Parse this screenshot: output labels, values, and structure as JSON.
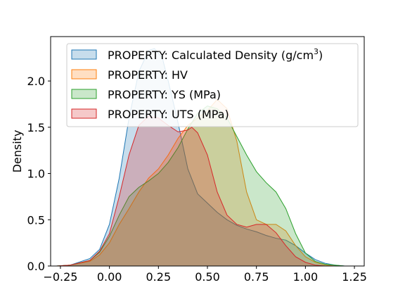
{
  "chart_data": {
    "type": "area",
    "xlabel": "",
    "ylabel": "Density",
    "xlim": [
      -0.3,
      1.3
    ],
    "ylim": [
      0.0,
      2.48
    ],
    "xticks": [
      "−0.25",
      "0.00",
      "0.25",
      "0.50",
      "0.75",
      "1.00",
      "1.25"
    ],
    "xtick_values": [
      -0.25,
      0.0,
      0.25,
      0.5,
      0.75,
      1.0,
      1.25
    ],
    "yticks": [
      "0.0",
      "0.5",
      "1.0",
      "1.5",
      "2.0"
    ],
    "ytick_values": [
      0.0,
      0.5,
      1.0,
      1.5,
      2.0
    ],
    "grid": false,
    "legend_position": "top-right",
    "series": [
      {
        "name": "PROPERTY: Calculated Density (g/cm3)",
        "label_main": "PROPERTY: Calculated Density (g/cm",
        "label_sup": "3",
        "label_end": ")",
        "color": "#1f77b4",
        "x": [
          -0.27,
          -0.2,
          -0.1,
          -0.05,
          0.0,
          0.05,
          0.1,
          0.15,
          0.2,
          0.23,
          0.27,
          0.3,
          0.35,
          0.4,
          0.45,
          0.5,
          0.55,
          0.6,
          0.65,
          0.7,
          0.75,
          0.8,
          0.85,
          0.9,
          0.95,
          1.0,
          1.05,
          1.1,
          1.15,
          1.2,
          1.25
        ],
        "y": [
          0.0,
          0.01,
          0.08,
          0.18,
          0.45,
          0.95,
          1.6,
          2.1,
          2.33,
          2.35,
          2.25,
          2.0,
          1.55,
          1.05,
          0.78,
          0.68,
          0.58,
          0.5,
          0.44,
          0.4,
          0.37,
          0.33,
          0.3,
          0.28,
          0.22,
          0.14,
          0.07,
          0.03,
          0.01,
          0.0,
          0.0
        ]
      },
      {
        "name": "PROPERTY: HV",
        "color": "#ff7f0e",
        "x": [
          -0.27,
          -0.2,
          -0.1,
          -0.05,
          0.0,
          0.05,
          0.1,
          0.15,
          0.2,
          0.25,
          0.3,
          0.35,
          0.4,
          0.45,
          0.5,
          0.55,
          0.6,
          0.65,
          0.7,
          0.75,
          0.8,
          0.85,
          0.9,
          0.95,
          1.0,
          1.05,
          1.1,
          1.15,
          1.2,
          1.25
        ],
        "y": [
          0.0,
          0.01,
          0.05,
          0.12,
          0.25,
          0.45,
          0.62,
          0.8,
          0.95,
          1.05,
          1.2,
          1.38,
          1.52,
          1.6,
          1.68,
          1.8,
          1.7,
          1.35,
          0.8,
          0.5,
          0.45,
          0.45,
          0.38,
          0.22,
          0.1,
          0.04,
          0.01,
          0.0,
          0.0,
          0.0
        ]
      },
      {
        "name": "PROPERTY: YS (MPa)",
        "color": "#2ca02c",
        "x": [
          -0.27,
          -0.2,
          -0.1,
          -0.05,
          0.0,
          0.05,
          0.1,
          0.15,
          0.2,
          0.25,
          0.3,
          0.35,
          0.4,
          0.45,
          0.5,
          0.55,
          0.6,
          0.65,
          0.7,
          0.75,
          0.8,
          0.85,
          0.9,
          0.95,
          1.0,
          1.05,
          1.1,
          1.15,
          1.2,
          1.25
        ],
        "y": [
          0.0,
          0.01,
          0.06,
          0.15,
          0.32,
          0.55,
          0.75,
          0.85,
          0.92,
          1.0,
          1.12,
          1.28,
          1.48,
          1.65,
          1.73,
          1.7,
          1.6,
          1.4,
          1.2,
          1.02,
          0.9,
          0.8,
          0.62,
          0.35,
          0.14,
          0.05,
          0.02,
          0.01,
          0.0,
          0.0
        ]
      },
      {
        "name": "PROPERTY: UTS (MPa)",
        "color": "#d62728",
        "x": [
          -0.27,
          -0.2,
          -0.1,
          -0.05,
          0.0,
          0.05,
          0.1,
          0.15,
          0.2,
          0.25,
          0.3,
          0.35,
          0.4,
          0.42,
          0.45,
          0.5,
          0.55,
          0.6,
          0.65,
          0.7,
          0.75,
          0.8,
          0.85,
          0.9,
          0.95,
          1.0,
          1.05,
          1.1,
          1.15,
          1.2,
          1.25
        ],
        "y": [
          0.0,
          0.01,
          0.06,
          0.16,
          0.35,
          0.75,
          1.2,
          1.52,
          1.62,
          1.6,
          1.52,
          1.45,
          1.47,
          1.5,
          1.44,
          1.2,
          0.8,
          0.55,
          0.45,
          0.42,
          0.45,
          0.45,
          0.36,
          0.22,
          0.1,
          0.04,
          0.01,
          0.0,
          0.0,
          0.0,
          0.0
        ]
      }
    ]
  }
}
